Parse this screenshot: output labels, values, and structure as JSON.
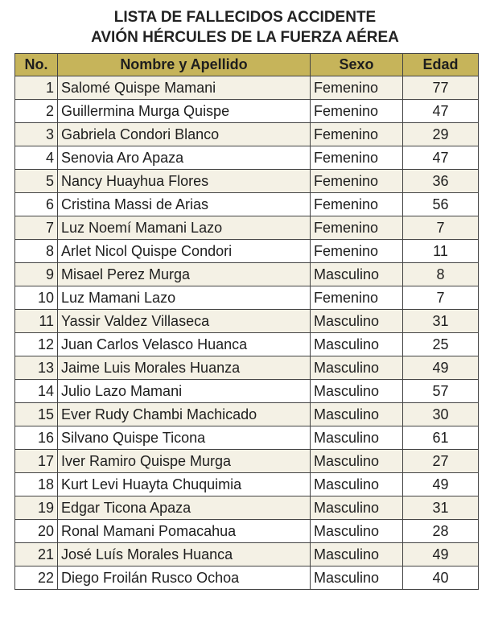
{
  "title": {
    "line1": "LISTA DE FALLECIDOS ACCIDENTE",
    "line2": "AVIÓN HÉRCULES DE LA FUERZA AÉREA"
  },
  "colors": {
    "header": "#c6b45a",
    "alt_row": "#f4f1e5"
  },
  "table": {
    "headers": [
      "No.",
      "Nombre y Apellido",
      "Sexo",
      "Edad"
    ],
    "rows": [
      [
        "1",
        "Salomé Quispe Mamani",
        "Femenino",
        "77"
      ],
      [
        "2",
        "Guillermina Murga Quispe",
        "Femenino",
        "47"
      ],
      [
        "3",
        "Gabriela Condori Blanco",
        "Femenino",
        "29"
      ],
      [
        "4",
        "Senovia Aro Apaza",
        "Femenino",
        "47"
      ],
      [
        "5",
        "Nancy Huayhua Flores",
        "Femenino",
        "36"
      ],
      [
        "6",
        "Cristina Massi de Arias",
        "Femenino",
        "56"
      ],
      [
        "7",
        "Luz Noemí Mamani Lazo",
        "Femenino",
        "7"
      ],
      [
        "8",
        "Arlet Nicol Quispe Condori",
        "Femenino",
        "11"
      ],
      [
        "9",
        "Misael Perez Murga",
        "Masculino",
        "8"
      ],
      [
        "10",
        "Luz Mamani Lazo",
        "Femenino",
        "7"
      ],
      [
        "11",
        "Yassir Valdez Villaseca",
        "Masculino",
        "31"
      ],
      [
        "12",
        "Juan Carlos Velasco Huanca",
        "Masculino",
        "25"
      ],
      [
        "13",
        "Jaime Luis Morales Huanza",
        "Masculino",
        "49"
      ],
      [
        "14",
        "Julio Lazo Mamani",
        "Masculino",
        "57"
      ],
      [
        "15",
        "Ever Rudy Chambi Machicado",
        "Masculino",
        "30"
      ],
      [
        "16",
        "Silvano Quispe Ticona",
        "Masculino",
        "61"
      ],
      [
        "17",
        "Iver Ramiro Quispe Murga",
        "Masculino",
        "27"
      ],
      [
        "18",
        "Kurt Levi Huayta Chuquimia",
        "Masculino",
        "49"
      ],
      [
        "19",
        "Edgar Ticona Apaza",
        "Masculino",
        "31"
      ],
      [
        "20",
        "Ronal Mamani Pomacahua",
        "Masculino",
        "28"
      ],
      [
        "21",
        "José Luís Morales Huanca",
        "Masculino",
        "49"
      ],
      [
        "22",
        "Diego Froilán Rusco Ochoa",
        "Masculino",
        "40"
      ]
    ]
  }
}
